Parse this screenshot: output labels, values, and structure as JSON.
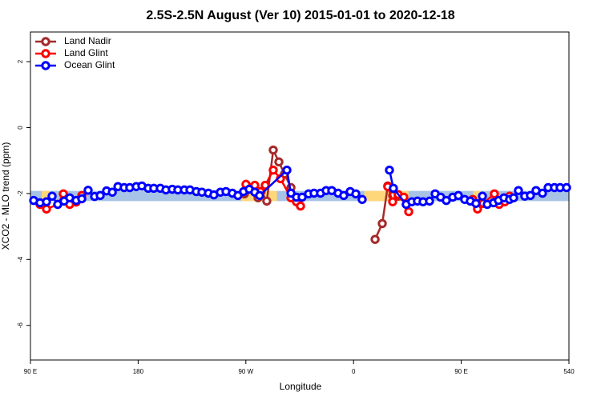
{
  "chart_data": {
    "type": "line",
    "title": "2.5S-2.5N August (Ver 10)   2015-01-01 to 2020-12-18",
    "x_label": "Longitude",
    "y_label": "XCO2 - MLO trend (ppm)",
    "xlim": [
      90,
      540
    ],
    "ylim": [
      -7.05,
      2.9
    ],
    "xticks": [
      {
        "value": 90,
        "label": "90 E"
      },
      180,
      {
        "value": 270,
        "label": "90 W"
      },
      {
        "value": 360,
        "label": "0"
      },
      {
        "value": 450,
        "label": "90 E"
      },
      540
    ],
    "yticks": [
      2,
      0,
      -2,
      -4,
      -6
    ],
    "legend": "top-left",
    "bands": {
      "ylim": [
        -2.23,
        -1.92
      ],
      "color": "#a7c3e6",
      "segments": [
        {
          "xlim": [
            99.4,
            106.1
          ],
          "color": "#fdd77a"
        },
        {
          "xlim": [
            266,
            296
          ],
          "color": "#fdd77a"
        },
        {
          "xlim": [
            369,
            406
          ],
          "color": "#fdd77a"
        },
        {
          "xlim": [
            460,
            466
          ],
          "color": "#fdd77a"
        }
      ]
    },
    "series": [
      {
        "name": "Land Nadir",
        "color": "#a52a2a",
        "x": [
          268.8,
          274.1,
          280.2,
          282.8,
          287.5,
          292.9,
          297.6,
          302.3,
          307.7,
          340,
          378.0,
          384.0,
          388.6,
          392.7,
          397.3
        ],
        "values": [
          -2.01,
          -1.82,
          -2.13,
          -1.94,
          -2.23,
          -0.68,
          -1.04,
          -1.41,
          -1.82,
          null,
          -3.39,
          -2.91,
          -1.77,
          -2.06,
          -2.08
        ]
      },
      {
        "name": "Land Glint",
        "color": "#ff0000",
        "x": [
          98.0,
          103.4,
          112.8,
          117.5,
          122.8,
          128.2,
          132.9,
          200,
          270.1,
          277.5,
          282.2,
          286.2,
          292.9,
          298.9,
          307.7,
          312.3,
          315.7,
          350,
          388.6,
          392.7,
          397.3,
          402.0,
          406.1,
          430,
          459.6,
          463.6,
          468.3,
          477.7,
          481.7,
          486.4,
          490.4
        ],
        "values": [
          -2.33,
          -2.47,
          -2.33,
          -2.01,
          -2.33,
          -2.26,
          -2.06,
          null,
          -1.72,
          -1.75,
          -1.94,
          -1.75,
          -1.29,
          -1.55,
          -2.13,
          -2.25,
          -2.38,
          null,
          -1.79,
          -2.25,
          -2.03,
          -2.11,
          -2.55,
          null,
          -2.18,
          -2.47,
          -2.3,
          -2.01,
          -2.33,
          -2.25,
          -2.08
        ]
      },
      {
        "name": "Ocean Glint",
        "color": "#0000ff",
        "x": [
          92.7,
          98.0,
          103.4,
          108.1,
          112.8,
          118.1,
          122.8,
          128.2,
          132.9,
          138.2,
          143.6,
          148.3,
          153.6,
          158.4,
          163.1,
          168.3,
          173.0,
          178.4,
          183.1,
          188.4,
          193.1,
          198.5,
          203.2,
          208.5,
          213.2,
          218.6,
          223.3,
          228.6,
          233.3,
          238.7,
          243.3,
          248.7,
          253.4,
          258.7,
          263.4,
          268.1,
          272.8,
          277.5,
          281.5,
          304.3,
          307.7,
          312.3,
          317.0,
          322.4,
          327.0,
          332.4,
          337.1,
          341.8,
          347.1,
          351.8,
          357.2,
          361.9,
          367.2,
          380,
          390.0,
          393.3,
          404.0,
          408.7,
          413.4,
          418.1,
          423.5,
          428.2,
          432.8,
          437.5,
          442.9,
          447.6,
          452.9,
          457.6,
          462.3,
          467.7,
          471.7,
          477.0,
          481.1,
          485.7,
          490.4,
          493.8,
          497.8,
          503.1,
          507.8,
          512.5,
          517.9,
          522.6,
          527.9,
          532.6,
          538.0
        ],
        "values": [
          -2.21,
          -2.28,
          -2.25,
          -2.08,
          -2.33,
          -2.23,
          -2.13,
          -2.21,
          -2.16,
          -1.9,
          -2.09,
          -2.06,
          -1.92,
          -1.96,
          -1.79,
          -1.82,
          -1.82,
          -1.79,
          -1.77,
          -1.84,
          -1.84,
          -1.84,
          -1.89,
          -1.87,
          -1.89,
          -1.89,
          -1.89,
          -1.94,
          -1.96,
          -1.99,
          -2.04,
          -1.96,
          -1.94,
          -1.99,
          -2.06,
          -1.94,
          -1.87,
          -1.96,
          -2.06,
          -1.29,
          -1.99,
          -2.11,
          -2.11,
          -2.01,
          -1.99,
          -1.99,
          -1.91,
          -1.91,
          -1.99,
          -2.06,
          -1.94,
          -2.01,
          -2.18,
          null,
          -1.29,
          -1.84,
          -2.33,
          -2.25,
          -2.23,
          -2.25,
          -2.23,
          -2.01,
          -2.11,
          -2.21,
          -2.11,
          -2.06,
          -2.18,
          -2.23,
          -2.3,
          -2.08,
          -2.33,
          -2.28,
          -2.21,
          -2.13,
          -2.18,
          -2.13,
          -1.91,
          -2.08,
          -2.06,
          -1.91,
          -1.99,
          -1.82,
          -1.82,
          -1.82,
          -1.82
        ]
      }
    ]
  }
}
